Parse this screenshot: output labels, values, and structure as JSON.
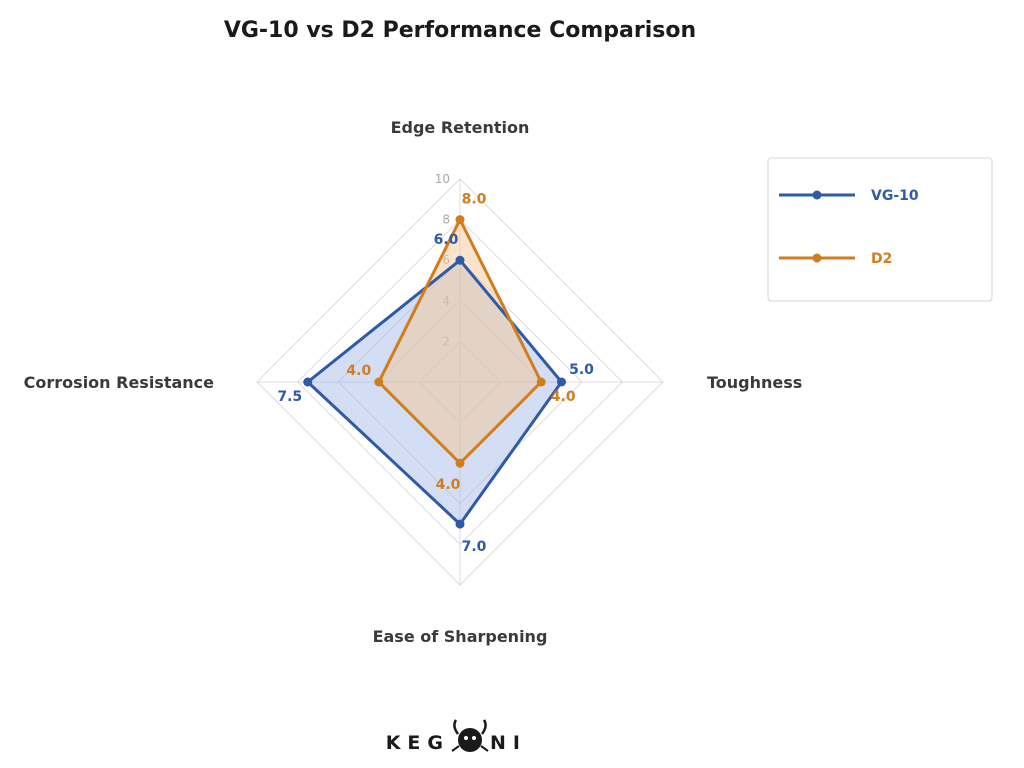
{
  "chart_data": {
    "type": "radar",
    "title": "VG-10 vs D2 Performance Comparison",
    "axes": [
      "Edge Retention",
      "Toughness",
      "Ease of Sharpening",
      "Corrosion Resistance"
    ],
    "range": [
      0,
      10
    ],
    "ticks": [
      2,
      4,
      6,
      8,
      10
    ],
    "grid": true,
    "legend_position": "top-right",
    "series": [
      {
        "name": "VG-10",
        "color": "#2e5aa7",
        "fill": "#9db5e6",
        "values": [
          6.0,
          5.0,
          7.0,
          7.5
        ],
        "labels": [
          "6.0",
          "5.0",
          "7.0",
          "7.5"
        ]
      },
      {
        "name": "D2",
        "color": "#d17d1e",
        "fill": "#f3c79a",
        "values": [
          8.0,
          4.0,
          4.0,
          4.0
        ],
        "labels": [
          "8.0",
          "4.0",
          "4.0",
          "4.0"
        ]
      }
    ]
  },
  "logo": {
    "left": "KEG",
    "right": "NI"
  }
}
